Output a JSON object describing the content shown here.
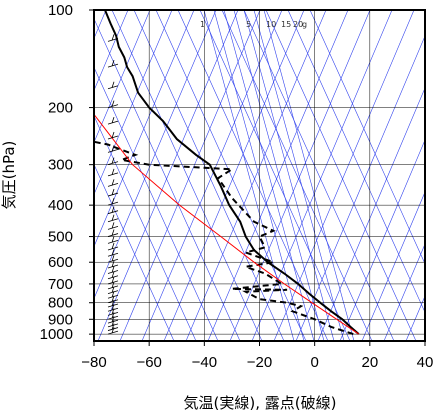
{
  "chart_data": {
    "type": "line",
    "title": "",
    "xlabel": "気温(実線), 露点(破線)",
    "ylabel": "気圧(hPa)",
    "x_ticks": [
      -80,
      -60,
      -40,
      -20,
      0,
      20,
      40
    ],
    "x_tick_labels": [
      "−80",
      "−60",
      "−40",
      "−20",
      "0",
      "20",
      "40"
    ],
    "y_ticks": [
      100,
      200,
      300,
      400,
      500,
      600,
      700,
      800,
      900,
      1000
    ],
    "xlim": [
      -80,
      40
    ],
    "ylim": [
      1050,
      100
    ],
    "y_scale": "log",
    "mixing_ratio_labels": [
      "1",
      "5",
      "10",
      "15",
      "20",
      "g"
    ],
    "series": [
      {
        "role": "temperature",
        "color": "#000000",
        "dash": "solid",
        "points": [
          [
            16,
            1000
          ],
          [
            13,
            950
          ],
          [
            10,
            900
          ],
          [
            6,
            850
          ],
          [
            2,
            800
          ],
          [
            -2,
            750
          ],
          [
            -6,
            700
          ],
          [
            -11,
            650
          ],
          [
            -17,
            600
          ],
          [
            -22,
            550
          ],
          [
            -25,
            500
          ],
          [
            -27,
            450
          ],
          [
            -31,
            400
          ],
          [
            -34,
            350
          ],
          [
            -38,
            300
          ],
          [
            -43,
            280
          ],
          [
            -50,
            250
          ],
          [
            -55,
            220
          ],
          [
            -60,
            200
          ],
          [
            -64,
            180
          ],
          [
            -66,
            160
          ],
          [
            -68,
            150
          ],
          [
            -69,
            140
          ],
          [
            -71,
            130
          ],
          [
            -72,
            120
          ],
          [
            -74,
            110
          ],
          [
            -76,
            100
          ]
        ]
      },
      {
        "role": "dewpoint",
        "color": "#000000",
        "dash": "dashed",
        "points": [
          [
            14,
            1000
          ],
          [
            6,
            950
          ],
          [
            0,
            900
          ],
          [
            -8,
            850
          ],
          [
            -5,
            820
          ],
          [
            -10,
            800
          ],
          [
            -20,
            780
          ],
          [
            -25,
            740
          ],
          [
            -10,
            730
          ],
          [
            -30,
            725
          ],
          [
            -12,
            700
          ],
          [
            -18,
            650
          ],
          [
            -25,
            620
          ],
          [
            -15,
            600
          ],
          [
            -25,
            560
          ],
          [
            -18,
            540
          ],
          [
            -20,
            500
          ],
          [
            -15,
            480
          ],
          [
            -22,
            450
          ],
          [
            -30,
            380
          ],
          [
            -35,
            330
          ],
          [
            -30,
            310
          ],
          [
            -60,
            300
          ],
          [
            -70,
            290
          ],
          [
            -65,
            280
          ],
          [
            -70,
            270
          ],
          [
            -75,
            260
          ],
          [
            -80,
            255
          ]
        ]
      },
      {
        "role": "parcel",
        "color": "#ff0000",
        "dash": "solid",
        "points": [
          [
            16,
            1000
          ],
          [
            8,
            900
          ],
          [
            -1,
            800
          ],
          [
            -11,
            700
          ],
          [
            -22,
            600
          ],
          [
            -34,
            500
          ],
          [
            -49,
            400
          ],
          [
            -66,
            300
          ],
          [
            -80,
            210
          ]
        ]
      }
    ],
    "wind_barbs": "left column of wind barbs from 1000 to 100 hPa"
  }
}
